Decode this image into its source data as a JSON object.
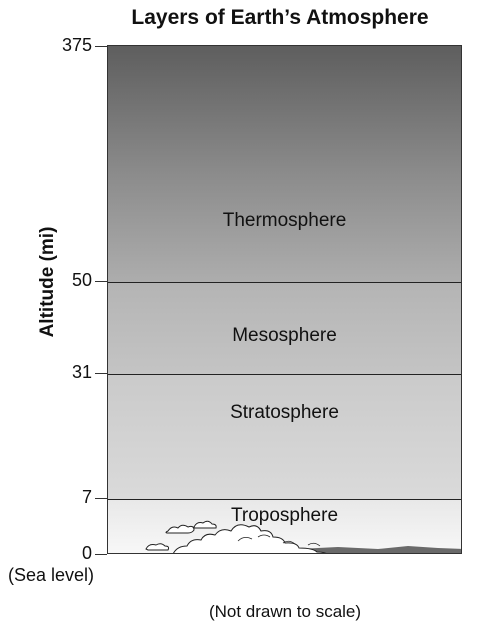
{
  "title": "Layers of Earth’s Atmosphere",
  "axis_title": "Altitude (mi)",
  "ticks": [
    "375",
    "50",
    "31",
    "7",
    "0"
  ],
  "sea_level_label": "(Sea level)",
  "layers": [
    {
      "name": "Thermosphere",
      "shade": "#5e5e5e"
    },
    {
      "name": "Mesosphere",
      "shade": "#b4b4b4"
    },
    {
      "name": "Stratosphere",
      "shade": "#cacaca"
    },
    {
      "name": "Troposphere",
      "shade": "#e8e8e8"
    }
  ],
  "note": "(Not drawn to scale)",
  "icons": [
    "cloud-icon",
    "mountain-icon"
  ]
}
